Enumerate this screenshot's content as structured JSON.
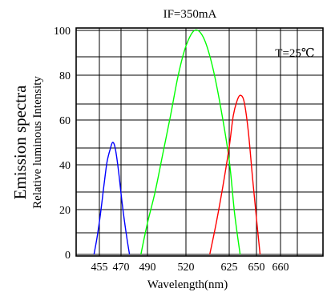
{
  "chart_data": {
    "type": "line",
    "title": "IF=350mA",
    "annotation": "T=25℃",
    "xlabel": "Wavelength(nm)",
    "ylabel_main": "Emission spectra",
    "ylabel_sub": "Relative luminous Intensity",
    "x_ticks": [
      "455",
      "470",
      "490",
      "520",
      "625",
      "650",
      "660"
    ],
    "y_ticks": [
      "0",
      "20",
      "40",
      "60",
      "80",
      "100"
    ],
    "ylim": [
      0,
      100
    ],
    "grid": true,
    "x_axis_note": "non-linear wavelength axis; x values expressed as position between labeled tick indices (0 = 455 ... 6 = 660)",
    "series": [
      {
        "color": "#0000ff",
        "peak_wavelength_nm": 462,
        "points": [
          [
            -0.25,
            0
          ],
          [
            -0.1,
            8
          ],
          [
            0.05,
            18
          ],
          [
            0.2,
            30
          ],
          [
            0.35,
            41
          ],
          [
            0.5,
            47
          ],
          [
            0.62,
            50
          ],
          [
            0.74,
            47
          ],
          [
            0.9,
            36
          ],
          [
            1.05,
            22
          ],
          [
            1.2,
            9
          ],
          [
            1.32,
            0
          ]
        ]
      },
      {
        "color": "#00ff00",
        "peak_wavelength_nm": 520,
        "points": [
          [
            1.75,
            0
          ],
          [
            2.0,
            14
          ],
          [
            2.2,
            28
          ],
          [
            2.4,
            45
          ],
          [
            2.6,
            62
          ],
          [
            2.8,
            80
          ],
          [
            3.0,
            93
          ],
          [
            3.2,
            100
          ],
          [
            3.4,
            97
          ],
          [
            3.6,
            85
          ],
          [
            3.8,
            66
          ],
          [
            4.0,
            42
          ],
          [
            4.2,
            18
          ],
          [
            4.4,
            0
          ]
        ]
      },
      {
        "color": "#ff0000",
        "peak_wavelength_nm": 625,
        "points": [
          [
            3.55,
            0
          ],
          [
            3.7,
            14
          ],
          [
            3.85,
            30
          ],
          [
            4.0,
            48
          ],
          [
            4.15,
            62
          ],
          [
            4.3,
            69
          ],
          [
            4.42,
            71
          ],
          [
            4.55,
            68
          ],
          [
            4.7,
            55
          ],
          [
            4.85,
            35
          ],
          [
            5.0,
            16
          ],
          [
            5.15,
            0
          ]
        ]
      }
    ]
  }
}
